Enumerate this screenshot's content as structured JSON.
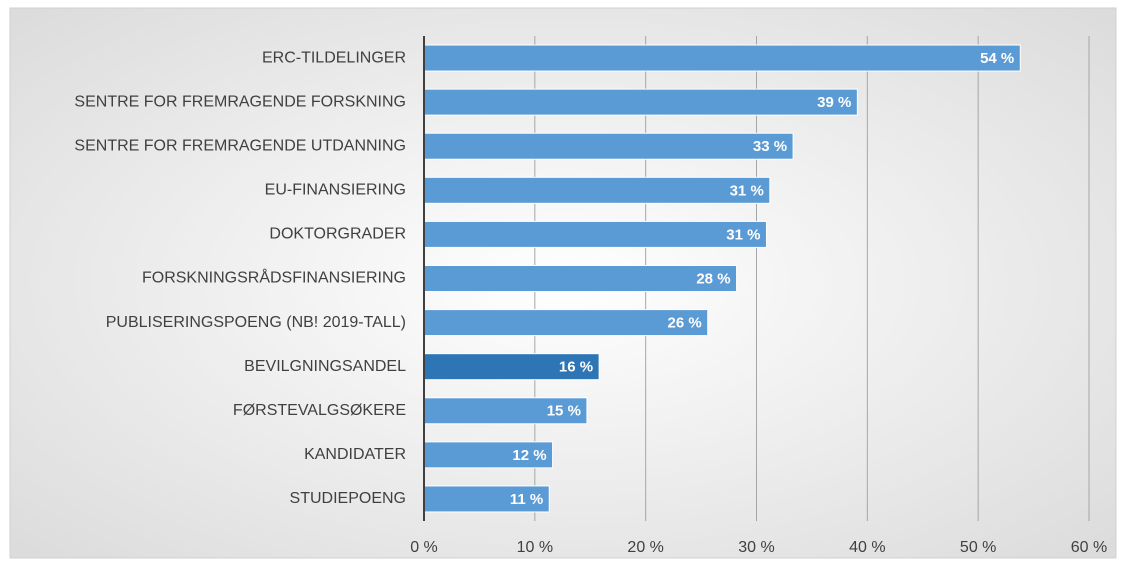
{
  "chart_data": {
    "type": "bar",
    "orientation": "horizontal",
    "categories": [
      "ERC-TILDELINGER",
      "SENTRE FOR FREMRAGENDE FORSKNING",
      "SENTRE FOR FREMRAGENDE UTDANNING",
      "EU-FINANSIERING",
      "DOKTORGRADER",
      "FORSKNINGSRÅDSFINANSIERING",
      "PUBLISERINGSPOENG (NB! 2019-TALL)",
      "BEVILGNINGSANDEL",
      "FØRSTEVALGSØKERE",
      "KANDIDATER",
      "STUDIEPOENG"
    ],
    "values": [
      53.8,
      39.1,
      33.3,
      31.2,
      30.9,
      28.2,
      25.6,
      15.8,
      14.7,
      11.6,
      11.3
    ],
    "value_labels": [
      "54 %",
      "39 %",
      "33 %",
      "31 %",
      "31 %",
      "28 %",
      "26 %",
      "16 %",
      "15 %",
      "12 %",
      "11 %"
    ],
    "colors": [
      "#5b9bd5",
      "#5b9bd5",
      "#5b9bd5",
      "#5b9bd5",
      "#5b9bd5",
      "#5b9bd5",
      "#5b9bd5",
      "#2e75b6",
      "#5b9bd5",
      "#5b9bd5",
      "#5b9bd5"
    ],
    "xlim": [
      0,
      60
    ],
    "xticks": [
      {
        "value": 0,
        "label": "0 %"
      },
      {
        "value": 10,
        "label": "10 %"
      },
      {
        "value": 20,
        "label": "20 %"
      },
      {
        "value": 30,
        "label": "30 %"
      },
      {
        "value": 40,
        "label": "40 %"
      },
      {
        "value": 50,
        "label": "50 %"
      },
      {
        "value": 60,
        "label": "60 %"
      }
    ],
    "grid": true
  }
}
